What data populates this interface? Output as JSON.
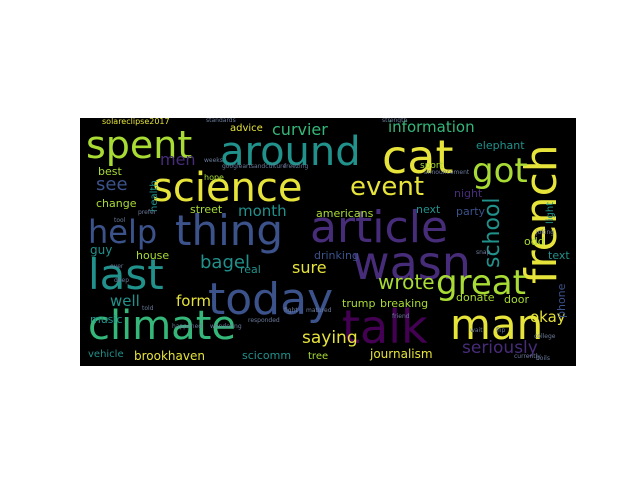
{
  "wordcloud": {
    "palette": {
      "yellow": "#e6e33a",
      "light_green": "#a8db34",
      "green": "#35b779",
      "teal": "#21918c",
      "blue": "#3b528b",
      "purple": "#472c7a",
      "dark_purple": "#440154",
      "dim": "#6b7a9a"
    },
    "words": {
      "science": "science",
      "french": "french",
      "cat": "cat",
      "around": "around",
      "article": "article",
      "thing": "thing",
      "wasn": "wasn",
      "today": "today",
      "climate": "climate",
      "talk": "talk",
      "man": "man",
      "last": "last",
      "spent": "spent",
      "help": "help",
      "great": "great",
      "got": "got",
      "event": "event",
      "school": "school",
      "information": "information",
      "curvier": "curvier",
      "wrote": "wrote",
      "seriously": "seriously",
      "saying": "saying",
      "okay": "okay",
      "bagel": "bagel",
      "month": "month",
      "men": "men",
      "see": "see",
      "sure": "sure",
      "form": "form",
      "journalism": "journalism",
      "brookhaven": "brookhaven",
      "well": "well",
      "elephant": "elephant",
      "party": "party",
      "night": "night",
      "best": "best",
      "street": "street",
      "house": "house",
      "americans": "americans",
      "next": "next",
      "drinking": "drinking",
      "guy": "guy",
      "music": "music",
      "trump": "trump",
      "breaking": "breaking",
      "donate": "donate",
      "door": "door",
      "phone": "phone",
      "text": "text",
      "odd": "odd",
      "light": "light",
      "scicomm": "scicomm",
      "tree": "tree",
      "vehicle": "vehicle",
      "change": "change",
      "advice": "advice",
      "solareclipse2017": "solareclipse2017",
      "health": "health",
      "real": "real",
      "sport": "sport",
      "hope": "hope",
      "googleartsandculture": "googleartsandculture",
      "freezing": "freezing",
      "standards": "standards",
      "strength": "strength",
      "announcement": "announcement",
      "wondering": "wondering",
      "fight": "fight",
      "matured": "matured",
      "happened": "happened",
      "responded": "responded",
      "currently": "currently",
      "college": "college",
      "flip": "flip",
      "wait": "wait",
      "joking": "joking",
      "ever": "ever",
      "snap": "snap",
      "prefer": "prefer",
      "weeks": "weeks",
      "told": "told",
      "friend": "friend",
      "tool": "tool",
      "deep": "deep",
      "boils": "boils"
    }
  }
}
